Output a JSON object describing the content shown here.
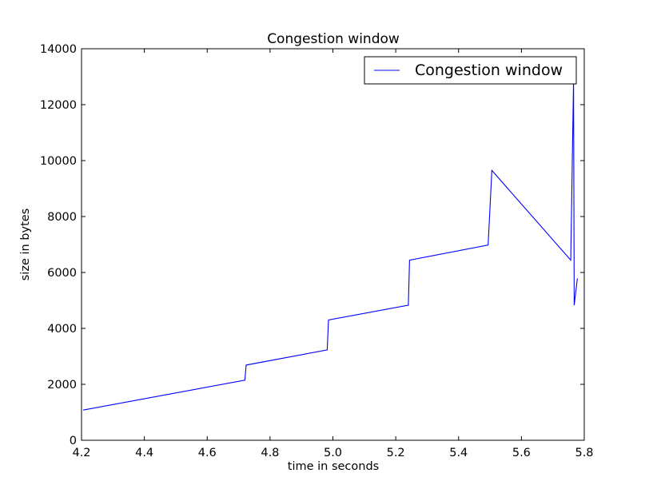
{
  "chart_data": {
    "type": "line",
    "title": "Congestion window",
    "xlabel": "time in seconds",
    "ylabel": "size in bytes",
    "xlim": [
      4.2,
      5.8
    ],
    "ylim": [
      0,
      14000
    ],
    "xticks": [
      "4.2",
      "4.4",
      "4.6",
      "4.8",
      "5.0",
      "5.2",
      "5.4",
      "5.6",
      "5.8"
    ],
    "yticks": [
      "0",
      "2000",
      "4000",
      "6000",
      "8000",
      "10000",
      "12000",
      "14000"
    ],
    "legend": {
      "position": "upper-right"
    },
    "grid": false,
    "series": [
      {
        "name": "Congestion window",
        "color": "#0000ff",
        "x": [
          4.205,
          4.72,
          4.724,
          4.982,
          4.986,
          5.24,
          5.244,
          5.494,
          5.506,
          5.757,
          5.766,
          5.768,
          5.778
        ],
        "y": [
          1080,
          2150,
          2690,
          3230,
          4300,
          4830,
          6440,
          6980,
          9650,
          6440,
          12870,
          4830,
          5790
        ]
      }
    ]
  }
}
